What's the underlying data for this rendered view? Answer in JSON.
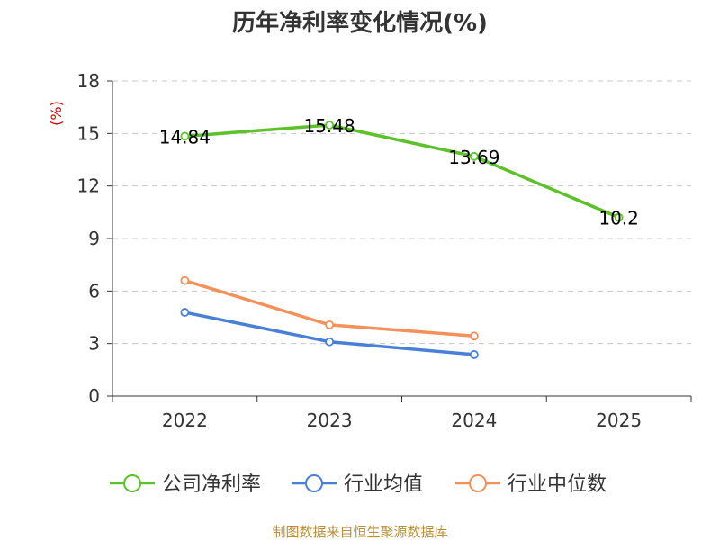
{
  "chart_data": {
    "type": "line",
    "title": "历年净利率变化情况(%)",
    "ylabel": "(%)",
    "xlabel": "",
    "ylim": [
      0,
      18
    ],
    "yticks": [
      0,
      3,
      6,
      9,
      12,
      15,
      18
    ],
    "categories": [
      "2022",
      "2023",
      "2024",
      "2025"
    ],
    "grid": true,
    "legend_position": "bottom",
    "series": [
      {
        "name": "公司净利率",
        "color": "#5cc12a",
        "values": [
          14.84,
          15.48,
          13.69,
          10.2
        ],
        "labels": [
          "14.84",
          "15.48",
          "13.69",
          "10.2"
        ]
      },
      {
        "name": "行业均值",
        "color": "#4a7fd6",
        "values": [
          4.78,
          3.1,
          2.37,
          null
        ]
      },
      {
        "name": "行业中位数",
        "color": "#f4905a",
        "values": [
          6.6,
          4.07,
          3.43,
          null
        ]
      }
    ],
    "source": "制图数据来自恒生聚源数据库"
  }
}
